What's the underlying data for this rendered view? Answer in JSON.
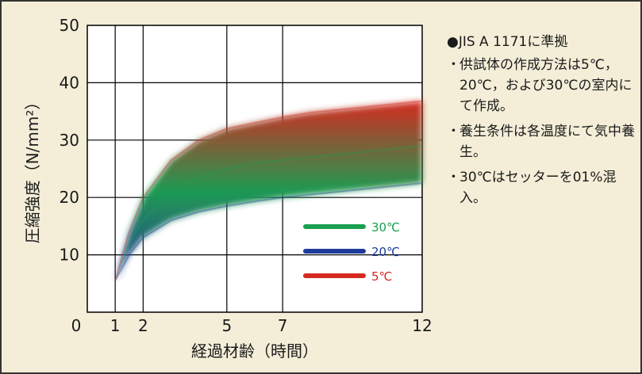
{
  "chart_data": {
    "type": "area",
    "xlabel": "経過材齢（時間）",
    "ylabel": "圧縮強度（N/mm²）",
    "xlim": [
      0,
      12
    ],
    "ylim": [
      0,
      50
    ],
    "x_ticks": [
      0,
      1,
      2,
      5,
      7,
      12
    ],
    "y_ticks": [
      10,
      20,
      30,
      40,
      50
    ],
    "grid": true,
    "legend_position": "lower-right",
    "band_color_upper": "#d42a20",
    "band_color_mid": "#1e9a52",
    "band_color_lower": "#2b3a9a",
    "x": [
      1,
      1.5,
      2,
      3,
      4,
      5,
      6,
      7,
      8,
      9,
      10,
      11,
      12
    ],
    "series": [
      {
        "name": "30℃",
        "color": "#1aa050",
        "values": [
          5.5,
          12,
          16,
          21,
          23.5,
          25,
          26,
          26.5,
          27,
          27.5,
          28,
          28.5,
          29
        ]
      },
      {
        "name": "20℃",
        "color": "#1e3a9a",
        "values": [
          5.5,
          10,
          13,
          16,
          17.5,
          18.5,
          19.3,
          20,
          20.5,
          21,
          21.5,
          22,
          22.5
        ]
      },
      {
        "name": "5℃",
        "color": "#d42a20",
        "values": [
          5.5,
          14,
          20,
          26.5,
          30,
          32,
          33,
          34,
          34.8,
          35.3,
          35.8,
          36.3,
          36.8
        ]
      }
    ]
  },
  "notes": {
    "head": "●JIS A 1171に準拠",
    "bullet": "・",
    "items": [
      "供試体の作成方法は5℃，20℃，および30℃の室内にて作成。",
      "養生条件は各温度にて気中養生。",
      "30℃はセッターを01%混入。"
    ]
  }
}
